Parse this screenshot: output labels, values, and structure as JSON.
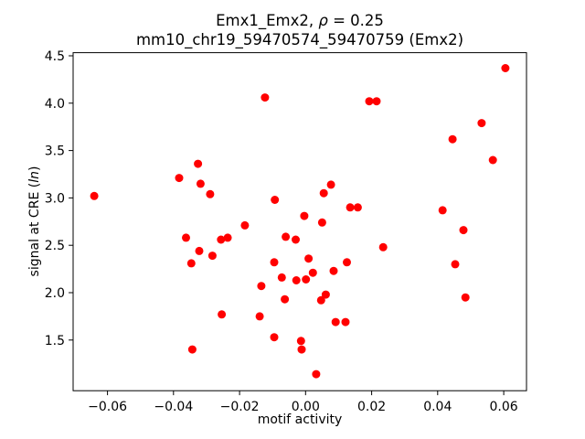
{
  "figure": {
    "title_line1_prefix": "Emx1_Emx2, ",
    "title_rho": "ρ",
    "title_line1_suffix": " = 0.25",
    "title_line2": "mm10_chr19_59470574_59470759 (Emx2)",
    "xlabel": "motif activity",
    "ylabel_prefix": "signal at CRE (",
    "ylabel_italic": "ln",
    "ylabel_suffix": ")"
  },
  "chart_data": {
    "type": "scatter",
    "title": "Emx1_Emx2, ρ = 0.25",
    "subtitle": "mm10_chr19_59470574_59470759 (Emx2)",
    "xlabel": "motif activity",
    "ylabel": "signal at CRE (ln)",
    "rho": 0.25,
    "grid": false,
    "legend": "none",
    "marker_color": "#ff0000",
    "marker_radius": 4.5,
    "axis_color": "#000000",
    "background_color": "#ffffff",
    "xlim": [
      -0.0704,
      0.0669
    ],
    "ylim": [
      0.965,
      4.533
    ],
    "x_ticks": {
      "values": [
        -0.06,
        -0.04,
        -0.02,
        0.0,
        0.02,
        0.04,
        0.06
      ],
      "labels": [
        "−0.06",
        "−0.04",
        "−0.02",
        "0.00",
        "0.02",
        "0.04",
        "0.06"
      ]
    },
    "y_ticks": {
      "values": [
        1.5,
        2.0,
        2.5,
        3.0,
        3.5,
        4.0,
        4.5
      ],
      "labels": [
        "1.5",
        "2.0",
        "2.5",
        "3.0",
        "3.5",
        "4.0",
        "4.5"
      ]
    },
    "points": [
      [
        -0.064,
        3.02
      ],
      [
        -0.0383,
        3.21
      ],
      [
        -0.0326,
        3.36
      ],
      [
        -0.0318,
        3.15
      ],
      [
        -0.0289,
        3.04
      ],
      [
        -0.0123,
        4.06
      ],
      [
        -0.0093,
        2.98
      ],
      [
        -0.0004,
        2.81
      ],
      [
        0.0077,
        3.14
      ],
      [
        0.0055,
        3.05
      ],
      [
        0.0605,
        4.37
      ],
      [
        0.0193,
        4.02
      ],
      [
        0.0215,
        4.02
      ],
      [
        0.0533,
        3.79
      ],
      [
        0.0445,
        3.62
      ],
      [
        0.0567,
        3.4
      ],
      [
        0.0135,
        2.9
      ],
      [
        0.0158,
        2.9
      ],
      [
        0.0415,
        2.87
      ],
      [
        0.005,
        2.74
      ],
      [
        -0.0184,
        2.71
      ],
      [
        -0.0362,
        2.58
      ],
      [
        -0.0256,
        2.56
      ],
      [
        -0.0236,
        2.58
      ],
      [
        -0.0322,
        2.44
      ],
      [
        -0.0282,
        2.39
      ],
      [
        -0.0346,
        2.31
      ],
      [
        -0.006,
        2.59
      ],
      [
        -0.003,
        2.56
      ],
      [
        -0.0095,
        2.32
      ],
      [
        0.0009,
        2.36
      ],
      [
        -0.0072,
        2.16
      ],
      [
        -0.0028,
        2.13
      ],
      [
        0.0001,
        2.14
      ],
      [
        0.0022,
        2.21
      ],
      [
        -0.0134,
        2.07
      ],
      [
        -0.0063,
        1.93
      ],
      [
        -0.0254,
        1.77
      ],
      [
        -0.0139,
        1.75
      ],
      [
        -0.0095,
        1.53
      ],
      [
        -0.0343,
        1.4
      ],
      [
        -0.0014,
        1.49
      ],
      [
        -0.0012,
        1.4
      ],
      [
        0.0032,
        1.14
      ],
      [
        0.0478,
        2.66
      ],
      [
        0.0235,
        2.48
      ],
      [
        0.0125,
        2.32
      ],
      [
        0.0085,
        2.23
      ],
      [
        0.0453,
        2.3
      ],
      [
        0.0061,
        1.98
      ],
      [
        0.0047,
        1.92
      ],
      [
        0.0484,
        1.95
      ],
      [
        0.0091,
        1.69
      ],
      [
        0.0121,
        1.69
      ]
    ]
  }
}
